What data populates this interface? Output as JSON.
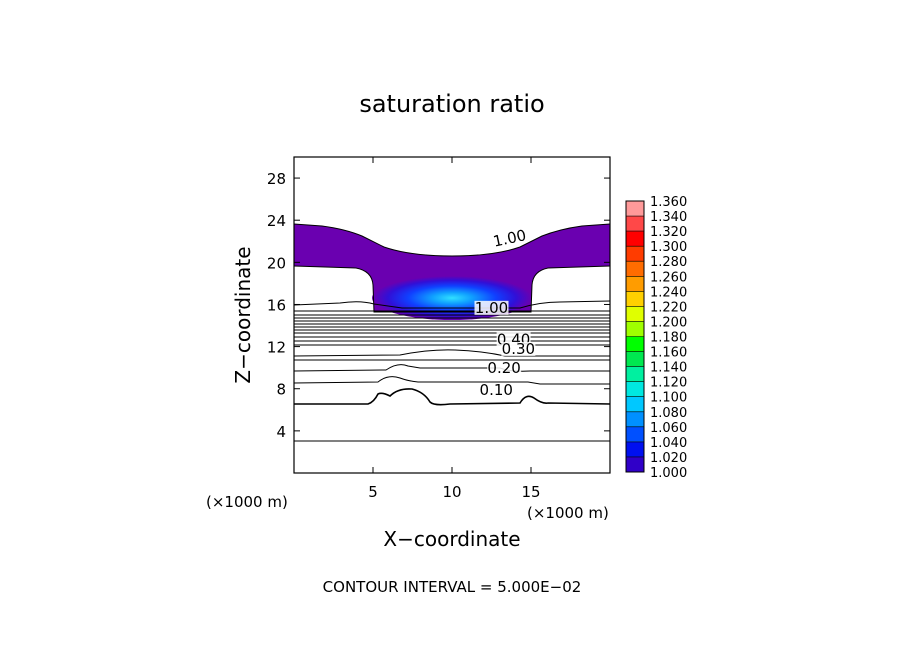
{
  "chart_data": {
    "type": "contour",
    "title": "saturation ratio",
    "xlabel": "X−coordinate",
    "ylabel": "Z−coordinate",
    "x_unit_label": "(×1000 m)",
    "y_unit_label": "(×1000 m)",
    "xlim": [
      0,
      20
    ],
    "ylim": [
      0,
      30
    ],
    "x_ticks": [
      5,
      10,
      15
    ],
    "y_ticks": [
      4,
      8,
      12,
      16,
      20,
      24,
      28
    ],
    "x_tick_labels": [
      "5",
      "10",
      "15"
    ],
    "y_tick_labels": [
      "4",
      "8",
      "12",
      "16",
      "20",
      "24",
      "28"
    ],
    "footer": "CONTOUR INTERVAL = 5.000E−02",
    "contour_labels": [
      {
        "text": "1.00",
        "x": 13.7,
        "y": 21.9
      },
      {
        "text": "1.00",
        "x": 12.5,
        "y": 15.3
      },
      {
        "text": "0.40",
        "x": 13.9,
        "y": 12.3
      },
      {
        "text": "0.30",
        "x": 14.2,
        "y": 11.4
      },
      {
        "text": "0.20",
        "x": 13.3,
        "y": 9.6
      },
      {
        "text": "0.10",
        "x": 12.8,
        "y": 7.5
      }
    ],
    "colorbar": {
      "levels": [
        "1.360",
        "1.340",
        "1.320",
        "1.300",
        "1.280",
        "1.260",
        "1.240",
        "1.220",
        "1.200",
        "1.180",
        "1.160",
        "1.140",
        "1.120",
        "1.100",
        "1.080",
        "1.060",
        "1.040",
        "1.020",
        "1.000"
      ],
      "colors": [
        "#ff9a9a",
        "#ff4848",
        "#ff0000",
        "#ff3c00",
        "#ff6c00",
        "#ff9c00",
        "#ffd000",
        "#e0ff00",
        "#a0ff00",
        "#00ff00",
        "#00e850",
        "#00f0a0",
        "#00e8e0",
        "#00c8ff",
        "#0090ff",
        "#0050ff",
        "#0010f0",
        "#3000c8",
        "#6a00b0"
      ]
    },
    "filled_region_color": "#6a00b0",
    "core_color": "#1040ff"
  }
}
